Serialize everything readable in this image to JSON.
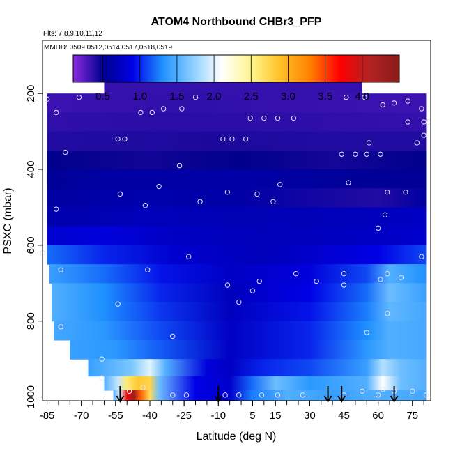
{
  "chart_data": {
    "type": "heatmap",
    "title": "ATOM4 Northbound CHBr3_PFP",
    "subtitle_flights": "Flts: 7,8,9,10,11,12",
    "subtitle_dates": "MMDD: 0509,0512,0514,0517,0518,0519",
    "xlabel": "Latitude (deg N)",
    "ylabel": "PSXC (mbar)",
    "xlim": [
      -87,
      83
    ],
    "ylim": [
      1010,
      60
    ],
    "x_ticks": [
      -85,
      -70,
      -55,
      -40,
      -25,
      -10,
      5,
      15,
      30,
      45,
      60,
      75
    ],
    "x_tick_labels": [
      "-85",
      "-70",
      "-55",
      "-40",
      "-25",
      "-10",
      "5",
      "15",
      "30",
      "45",
      "60",
      "75"
    ],
    "y_ticks": [
      200,
      400,
      600,
      800,
      1000
    ],
    "y_tick_labels": [
      "200",
      "400",
      "600",
      "800",
      "1000"
    ],
    "colorbar": {
      "range": [
        0.1,
        4.5
      ],
      "ticks": [
        0.5,
        1.0,
        1.5,
        2.0,
        2.5,
        3.0,
        3.5,
        4.0
      ],
      "tick_labels": [
        "0.5",
        "1.0",
        "1.5",
        "2.0",
        "2.5",
        "3.0",
        "3.5",
        "4.0"
      ],
      "colors": [
        "#8a2be2",
        "#00008b",
        "#0000e6",
        "#1e90ff",
        "#87ceff",
        "#ffffff",
        "#fff68f",
        "#ffc125",
        "#ff7f00",
        "#ff0000",
        "#b22222",
        "#8b1a1a"
      ]
    },
    "field_rows": [
      {
        "p": 175,
        "xmin": -60,
        "xmax": 53,
        "values": [
          {
            "lat": -60,
            "v": 0.35
          },
          {
            "lat": 53,
            "v": 0.35
          }
        ]
      },
      {
        "p": 225,
        "xmin": -85,
        "xmax": 81,
        "values": [
          {
            "lat": -85,
            "v": 0.33
          },
          {
            "lat": -20,
            "v": 0.36
          },
          {
            "lat": 30,
            "v": 0.34
          },
          {
            "lat": 81,
            "v": 0.33
          }
        ]
      },
      {
        "p": 275,
        "xmin": -85,
        "xmax": 81,
        "values": [
          {
            "lat": -85,
            "v": 0.36
          },
          {
            "lat": -30,
            "v": 0.38
          },
          {
            "lat": 10,
            "v": 0.37
          },
          {
            "lat": 50,
            "v": 0.36
          },
          {
            "lat": 81,
            "v": 0.35
          }
        ]
      },
      {
        "p": 325,
        "xmin": -85,
        "xmax": 81,
        "values": [
          {
            "lat": -85,
            "v": 0.4
          },
          {
            "lat": -10,
            "v": 0.42
          },
          {
            "lat": 40,
            "v": 0.4
          },
          {
            "lat": 81,
            "v": 0.4
          }
        ]
      },
      {
        "p": 375,
        "xmin": -85,
        "xmax": 81,
        "values": [
          {
            "lat": -85,
            "v": 0.5
          },
          {
            "lat": -40,
            "v": 0.45
          },
          {
            "lat": 0,
            "v": 0.5
          },
          {
            "lat": 40,
            "v": 0.44
          },
          {
            "lat": 81,
            "v": 0.5
          }
        ]
      },
      {
        "p": 425,
        "xmin": -85,
        "xmax": 81,
        "values": [
          {
            "lat": -85,
            "v": 0.55
          },
          {
            "lat": -60,
            "v": 0.6
          },
          {
            "lat": 0,
            "v": 0.62
          },
          {
            "lat": 60,
            "v": 0.55
          },
          {
            "lat": 81,
            "v": 0.55
          }
        ]
      },
      {
        "p": 475,
        "xmin": -85,
        "xmax": 81,
        "values": [
          {
            "lat": -85,
            "v": 0.6
          },
          {
            "lat": -40,
            "v": 0.65
          },
          {
            "lat": 0,
            "v": 0.62
          },
          {
            "lat": 60,
            "v": 0.4
          },
          {
            "lat": 81,
            "v": 0.6
          }
        ]
      },
      {
        "p": 525,
        "xmin": -85,
        "xmax": 81,
        "values": [
          {
            "lat": -85,
            "v": 0.65
          },
          {
            "lat": -40,
            "v": 0.7
          },
          {
            "lat": 0,
            "v": 0.68
          },
          {
            "lat": 50,
            "v": 0.7
          },
          {
            "lat": 81,
            "v": 0.75
          }
        ]
      },
      {
        "p": 575,
        "xmin": -85,
        "xmax": 81,
        "values": [
          {
            "lat": -85,
            "v": 0.8
          },
          {
            "lat": -60,
            "v": 0.85
          },
          {
            "lat": -30,
            "v": 0.75
          },
          {
            "lat": 10,
            "v": 0.7
          },
          {
            "lat": 60,
            "v": 0.75
          },
          {
            "lat": 81,
            "v": 0.8
          }
        ]
      },
      {
        "p": 625,
        "xmin": -85,
        "xmax": 81,
        "values": [
          {
            "lat": -85,
            "v": 1.2
          },
          {
            "lat": -60,
            "v": 1.0
          },
          {
            "lat": -30,
            "v": 0.8
          },
          {
            "lat": 10,
            "v": 0.7
          },
          {
            "lat": 60,
            "v": 0.9
          },
          {
            "lat": 81,
            "v": 1.1
          }
        ]
      },
      {
        "p": 675,
        "xmin": -84,
        "xmax": 81,
        "values": [
          {
            "lat": -84,
            "v": 1.4
          },
          {
            "lat": -60,
            "v": 1.2
          },
          {
            "lat": -35,
            "v": 0.95
          },
          {
            "lat": -5,
            "v": 0.75
          },
          {
            "lat": 30,
            "v": 0.85
          },
          {
            "lat": 55,
            "v": 1.1
          },
          {
            "lat": 65,
            "v": 1.5
          },
          {
            "lat": 81,
            "v": 1.3
          }
        ]
      },
      {
        "p": 725,
        "xmin": -83,
        "xmax": 81,
        "values": [
          {
            "lat": -83,
            "v": 1.5
          },
          {
            "lat": -60,
            "v": 1.3
          },
          {
            "lat": -35,
            "v": 1.0
          },
          {
            "lat": -5,
            "v": 0.72
          },
          {
            "lat": 30,
            "v": 0.9
          },
          {
            "lat": 55,
            "v": 1.2
          },
          {
            "lat": 65,
            "v": 1.6
          },
          {
            "lat": 81,
            "v": 1.4
          }
        ]
      },
      {
        "p": 775,
        "xmin": -83,
        "xmax": 81,
        "values": [
          {
            "lat": -83,
            "v": 1.5
          },
          {
            "lat": -60,
            "v": 1.3
          },
          {
            "lat": -35,
            "v": 1.05
          },
          {
            "lat": -5,
            "v": 0.72
          },
          {
            "lat": 30,
            "v": 0.95
          },
          {
            "lat": 55,
            "v": 1.25
          },
          {
            "lat": 65,
            "v": 1.55
          },
          {
            "lat": 81,
            "v": 1.45
          }
        ]
      },
      {
        "p": 825,
        "xmin": -82,
        "xmax": 81,
        "values": [
          {
            "lat": -82,
            "v": 1.45
          },
          {
            "lat": -60,
            "v": 1.35
          },
          {
            "lat": -35,
            "v": 1.1
          },
          {
            "lat": -5,
            "v": 0.75
          },
          {
            "lat": 30,
            "v": 1.0
          },
          {
            "lat": 55,
            "v": 1.3
          },
          {
            "lat": 65,
            "v": 1.5
          },
          {
            "lat": 81,
            "v": 1.45
          }
        ]
      },
      {
        "p": 875,
        "xmin": -75,
        "xmax": 81,
        "values": [
          {
            "lat": -75,
            "v": 1.4
          },
          {
            "lat": -55,
            "v": 1.35
          },
          {
            "lat": -35,
            "v": 1.15
          },
          {
            "lat": -5,
            "v": 0.75
          },
          {
            "lat": 30,
            "v": 1.0
          },
          {
            "lat": 55,
            "v": 1.35
          },
          {
            "lat": 65,
            "v": 1.5
          },
          {
            "lat": 81,
            "v": 1.45
          }
        ]
      },
      {
        "p": 925,
        "xmin": -67,
        "xmax": 81,
        "values": [
          {
            "lat": -67,
            "v": 1.4
          },
          {
            "lat": -48,
            "v": 1.65
          },
          {
            "lat": -40,
            "v": 2.0
          },
          {
            "lat": -33,
            "v": 1.5
          },
          {
            "lat": -15,
            "v": 0.85
          },
          {
            "lat": -5,
            "v": 0.75
          },
          {
            "lat": 10,
            "v": 1.0
          },
          {
            "lat": 30,
            "v": 1.1
          },
          {
            "lat": 55,
            "v": 1.4
          },
          {
            "lat": 62,
            "v": 1.85
          },
          {
            "lat": 70,
            "v": 1.6
          },
          {
            "lat": 81,
            "v": 1.5
          }
        ]
      },
      {
        "p": 965,
        "xmin": -60,
        "xmax": 81,
        "values": [
          {
            "lat": -60,
            "v": 1.5
          },
          {
            "lat": -54,
            "v": 1.9
          },
          {
            "lat": -50,
            "v": 2.6
          },
          {
            "lat": -45,
            "v": 2.85
          },
          {
            "lat": -40,
            "v": 2.75
          },
          {
            "lat": -36,
            "v": 1.6
          },
          {
            "lat": -20,
            "v": 0.9
          },
          {
            "lat": -5,
            "v": 0.78
          },
          {
            "lat": 5,
            "v": 1.2
          },
          {
            "lat": 15,
            "v": 1.6
          },
          {
            "lat": 30,
            "v": 1.35
          },
          {
            "lat": 55,
            "v": 1.5
          },
          {
            "lat": 62,
            "v": 2.1
          },
          {
            "lat": 70,
            "v": 1.6
          },
          {
            "lat": 81,
            "v": 1.5
          }
        ]
      },
      {
        "p": 1000,
        "xmin": -56,
        "xmax": 81,
        "values": [
          {
            "lat": -56,
            "v": 1.5
          },
          {
            "lat": -53,
            "v": 2.0
          },
          {
            "lat": -50,
            "v": 3.8
          },
          {
            "lat": -47,
            "v": 4.3
          },
          {
            "lat": -44,
            "v": 3.4
          },
          {
            "lat": -40,
            "v": 2.7
          },
          {
            "lat": -36,
            "v": 1.6
          },
          {
            "lat": -20,
            "v": 0.9
          },
          {
            "lat": -5,
            "v": 0.8
          },
          {
            "lat": 5,
            "v": 1.25
          },
          {
            "lat": 20,
            "v": 1.5
          },
          {
            "lat": 40,
            "v": 1.4
          },
          {
            "lat": 60,
            "v": 1.5
          },
          {
            "lat": 81,
            "v": 1.45
          }
        ]
      }
    ],
    "samples": [
      {
        "lat": -85,
        "p": 215
      },
      {
        "lat": -81,
        "p": 250
      },
      {
        "lat": -77,
        "p": 355
      },
      {
        "lat": -81,
        "p": 505
      },
      {
        "lat": -87,
        "p": 620
      },
      {
        "lat": -79,
        "p": 665
      },
      {
        "lat": -79,
        "p": 815
      },
      {
        "lat": -71,
        "p": 210
      },
      {
        "lat": -54,
        "p": 320
      },
      {
        "lat": -51,
        "p": 320
      },
      {
        "lat": -53,
        "p": 465
      },
      {
        "lat": -44,
        "p": 250
      },
      {
        "lat": -39,
        "p": 250
      },
      {
        "lat": -34,
        "p": 240
      },
      {
        "lat": -36,
        "p": 445
      },
      {
        "lat": -42,
        "p": 495
      },
      {
        "lat": -41,
        "p": 665
      },
      {
        "lat": -26,
        "p": 240
      },
      {
        "lat": -27,
        "p": 390
      },
      {
        "lat": -20,
        "p": 210
      },
      {
        "lat": -18,
        "p": 485
      },
      {
        "lat": -23,
        "p": 630
      },
      {
        "lat": -54,
        "p": 755
      },
      {
        "lat": -30,
        "p": 840
      },
      {
        "lat": -61,
        "p": 900
      },
      {
        "lat": -61,
        "p": 950
      },
      {
        "lat": -49,
        "p": 985
      },
      {
        "lat": -43,
        "p": 975
      },
      {
        "lat": -30,
        "p": 995
      },
      {
        "lat": -24,
        "p": 995
      },
      {
        "lat": -8,
        "p": 320
      },
      {
        "lat": -4,
        "p": 320
      },
      {
        "lat": -6,
        "p": 460
      },
      {
        "lat": 4,
        "p": 265
      },
      {
        "lat": 2,
        "p": 320
      },
      {
        "lat": 10,
        "p": 265
      },
      {
        "lat": 16,
        "p": 265
      },
      {
        "lat": 23,
        "p": 265
      },
      {
        "lat": 7,
        "p": 465
      },
      {
        "lat": 14,
        "p": 485
      },
      {
        "lat": 17,
        "p": 440
      },
      {
        "lat": -6,
        "p": 705
      },
      {
        "lat": -1,
        "p": 750
      },
      {
        "lat": 5,
        "p": 720
      },
      {
        "lat": 8,
        "p": 695
      },
      {
        "lat": 24,
        "p": 675
      },
      {
        "lat": 33,
        "p": 695
      },
      {
        "lat": -7,
        "p": 995
      },
      {
        "lat": -1,
        "p": 995
      },
      {
        "lat": 9,
        "p": 995
      },
      {
        "lat": 16,
        "p": 995
      },
      {
        "lat": 27,
        "p": 995
      },
      {
        "lat": 46,
        "p": 210
      },
      {
        "lat": 54,
        "p": 210
      },
      {
        "lat": 62,
        "p": 230
      },
      {
        "lat": 67,
        "p": 225
      },
      {
        "lat": 73,
        "p": 220
      },
      {
        "lat": 79,
        "p": 240
      },
      {
        "lat": 73,
        "p": 275
      },
      {
        "lat": 80,
        "p": 275
      },
      {
        "lat": 82,
        "p": 275
      },
      {
        "lat": 77,
        "p": 330
      },
      {
        "lat": 80,
        "p": 310
      },
      {
        "lat": 56,
        "p": 330
      },
      {
        "lat": 44,
        "p": 360
      },
      {
        "lat": 50,
        "p": 360
      },
      {
        "lat": 55,
        "p": 360
      },
      {
        "lat": 61,
        "p": 360
      },
      {
        "lat": 47,
        "p": 435
      },
      {
        "lat": 64,
        "p": 460
      },
      {
        "lat": 72,
        "p": 460
      },
      {
        "lat": 63,
        "p": 520
      },
      {
        "lat": 60,
        "p": 555
      },
      {
        "lat": 79,
        "p": 630
      },
      {
        "lat": 45,
        "p": 675
      },
      {
        "lat": 45,
        "p": 705
      },
      {
        "lat": 61,
        "p": 690
      },
      {
        "lat": 64,
        "p": 675
      },
      {
        "lat": 70,
        "p": 685
      },
      {
        "lat": 64,
        "p": 780
      },
      {
        "lat": 55,
        "p": 830
      },
      {
        "lat": 45,
        "p": 995
      },
      {
        "lat": 53,
        "p": 985
      },
      {
        "lat": 60,
        "p": 995
      },
      {
        "lat": 62,
        "p": 980
      },
      {
        "lat": 67,
        "p": 985
      },
      {
        "lat": 75,
        "p": 985
      },
      {
        "lat": 81,
        "p": 995
      }
    ],
    "flight_arrows_lat": [
      -53,
      -10,
      38,
      44,
      67
    ]
  }
}
